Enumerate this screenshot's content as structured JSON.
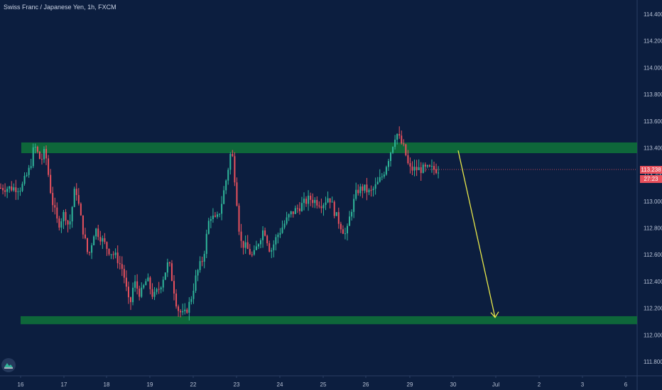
{
  "title": "Swiss Franc / Japanese Yen, 1h, FXCM",
  "price_badge": {
    "price": "113.238",
    "countdown": "27:23"
  },
  "logo_icon": "tradingview-logo-icon",
  "colors": {
    "background": "#0c1e3f",
    "up": "#2fb69a",
    "down": "#e8515d",
    "zone": "#0f6b3a",
    "arrow": "#e8e84a",
    "axis_text": "#b6c0d4"
  },
  "chart_data": {
    "type": "candlestick",
    "title": "Swiss Franc / Japanese Yen, 1h, FXCM",
    "y_axis": {
      "ticks": [
        "114.400",
        "114.200",
        "114.000",
        "113.800",
        "113.600",
        "113.400",
        "113.200",
        "113.000",
        "112.800",
        "112.600",
        "112.400",
        "112.200",
        "112.000",
        "111.800"
      ],
      "range": [
        111.75,
        114.45
      ],
      "position": "right"
    },
    "x_axis": {
      "ticks": [
        "16",
        "17",
        "18",
        "19",
        "22",
        "23",
        "24",
        "25",
        "26",
        "29",
        "30",
        "Jul",
        "2",
        "3",
        "6"
      ]
    },
    "close_path": [
      [
        16.0,
        113.1
      ],
      [
        16.2,
        113.25
      ],
      [
        16.3,
        113.42
      ],
      [
        16.45,
        113.3
      ],
      [
        16.55,
        113.38
      ],
      [
        16.7,
        113.02
      ],
      [
        16.85,
        112.82
      ],
      [
        17.0,
        112.92
      ],
      [
        17.1,
        112.8
      ],
      [
        17.25,
        113.12
      ],
      [
        17.4,
        112.82
      ],
      [
        17.55,
        112.58
      ],
      [
        17.7,
        112.8
      ],
      [
        17.85,
        112.72
      ],
      [
        18.0,
        112.64
      ],
      [
        18.2,
        112.58
      ],
      [
        18.35,
        112.48
      ],
      [
        18.5,
        112.2
      ],
      [
        18.6,
        112.4
      ],
      [
        18.75,
        112.3
      ],
      [
        18.9,
        112.42
      ],
      [
        19.05,
        112.28
      ],
      [
        19.2,
        112.36
      ],
      [
        19.4,
        112.55
      ],
      [
        19.5,
        112.38
      ],
      [
        19.6,
        112.2
      ],
      [
        19.75,
        112.14
      ],
      [
        19.9,
        112.25
      ],
      [
        20.05,
        112.46
      ],
      [
        20.2,
        112.58
      ],
      [
        20.35,
        112.9
      ],
      [
        20.5,
        112.85
      ],
      [
        20.6,
        112.95
      ],
      [
        20.75,
        113.2
      ],
      [
        20.85,
        113.4
      ],
      [
        20.95,
        113.1
      ],
      [
        21.05,
        112.7
      ],
      [
        21.2,
        112.65
      ],
      [
        21.35,
        112.58
      ],
      [
        21.5,
        112.72
      ],
      [
        21.6,
        112.8
      ],
      [
        21.75,
        112.62
      ],
      [
        21.9,
        112.74
      ],
      [
        22.05,
        112.82
      ],
      [
        22.2,
        112.9
      ],
      [
        22.35,
        112.94
      ],
      [
        22.5,
        112.98
      ],
      [
        22.65,
        113.02
      ],
      [
        22.8,
        113.0
      ],
      [
        22.95,
        112.98
      ],
      [
        23.1,
        113.04
      ],
      [
        23.25,
        112.9
      ],
      [
        23.4,
        112.8
      ],
      [
        23.5,
        112.74
      ],
      [
        23.6,
        112.92
      ],
      [
        23.75,
        113.08
      ],
      [
        23.9,
        113.1
      ],
      [
        24.05,
        113.06
      ],
      [
        24.2,
        113.12
      ],
      [
        24.35,
        113.2
      ],
      [
        24.45,
        113.3
      ],
      [
        24.55,
        113.4
      ],
      [
        24.65,
        113.52
      ],
      [
        24.75,
        113.45
      ],
      [
        24.85,
        113.38
      ],
      [
        24.95,
        113.24
      ]
    ],
    "zones": [
      {
        "name": "resistance",
        "low": 113.36,
        "high": 113.44
      },
      {
        "name": "support",
        "low": 112.08,
        "high": 112.14
      }
    ],
    "arrow": {
      "from": [
        24.9,
        113.38
      ],
      "to": [
        26.0,
        112.12
      ]
    },
    "last_price": 113.238
  }
}
